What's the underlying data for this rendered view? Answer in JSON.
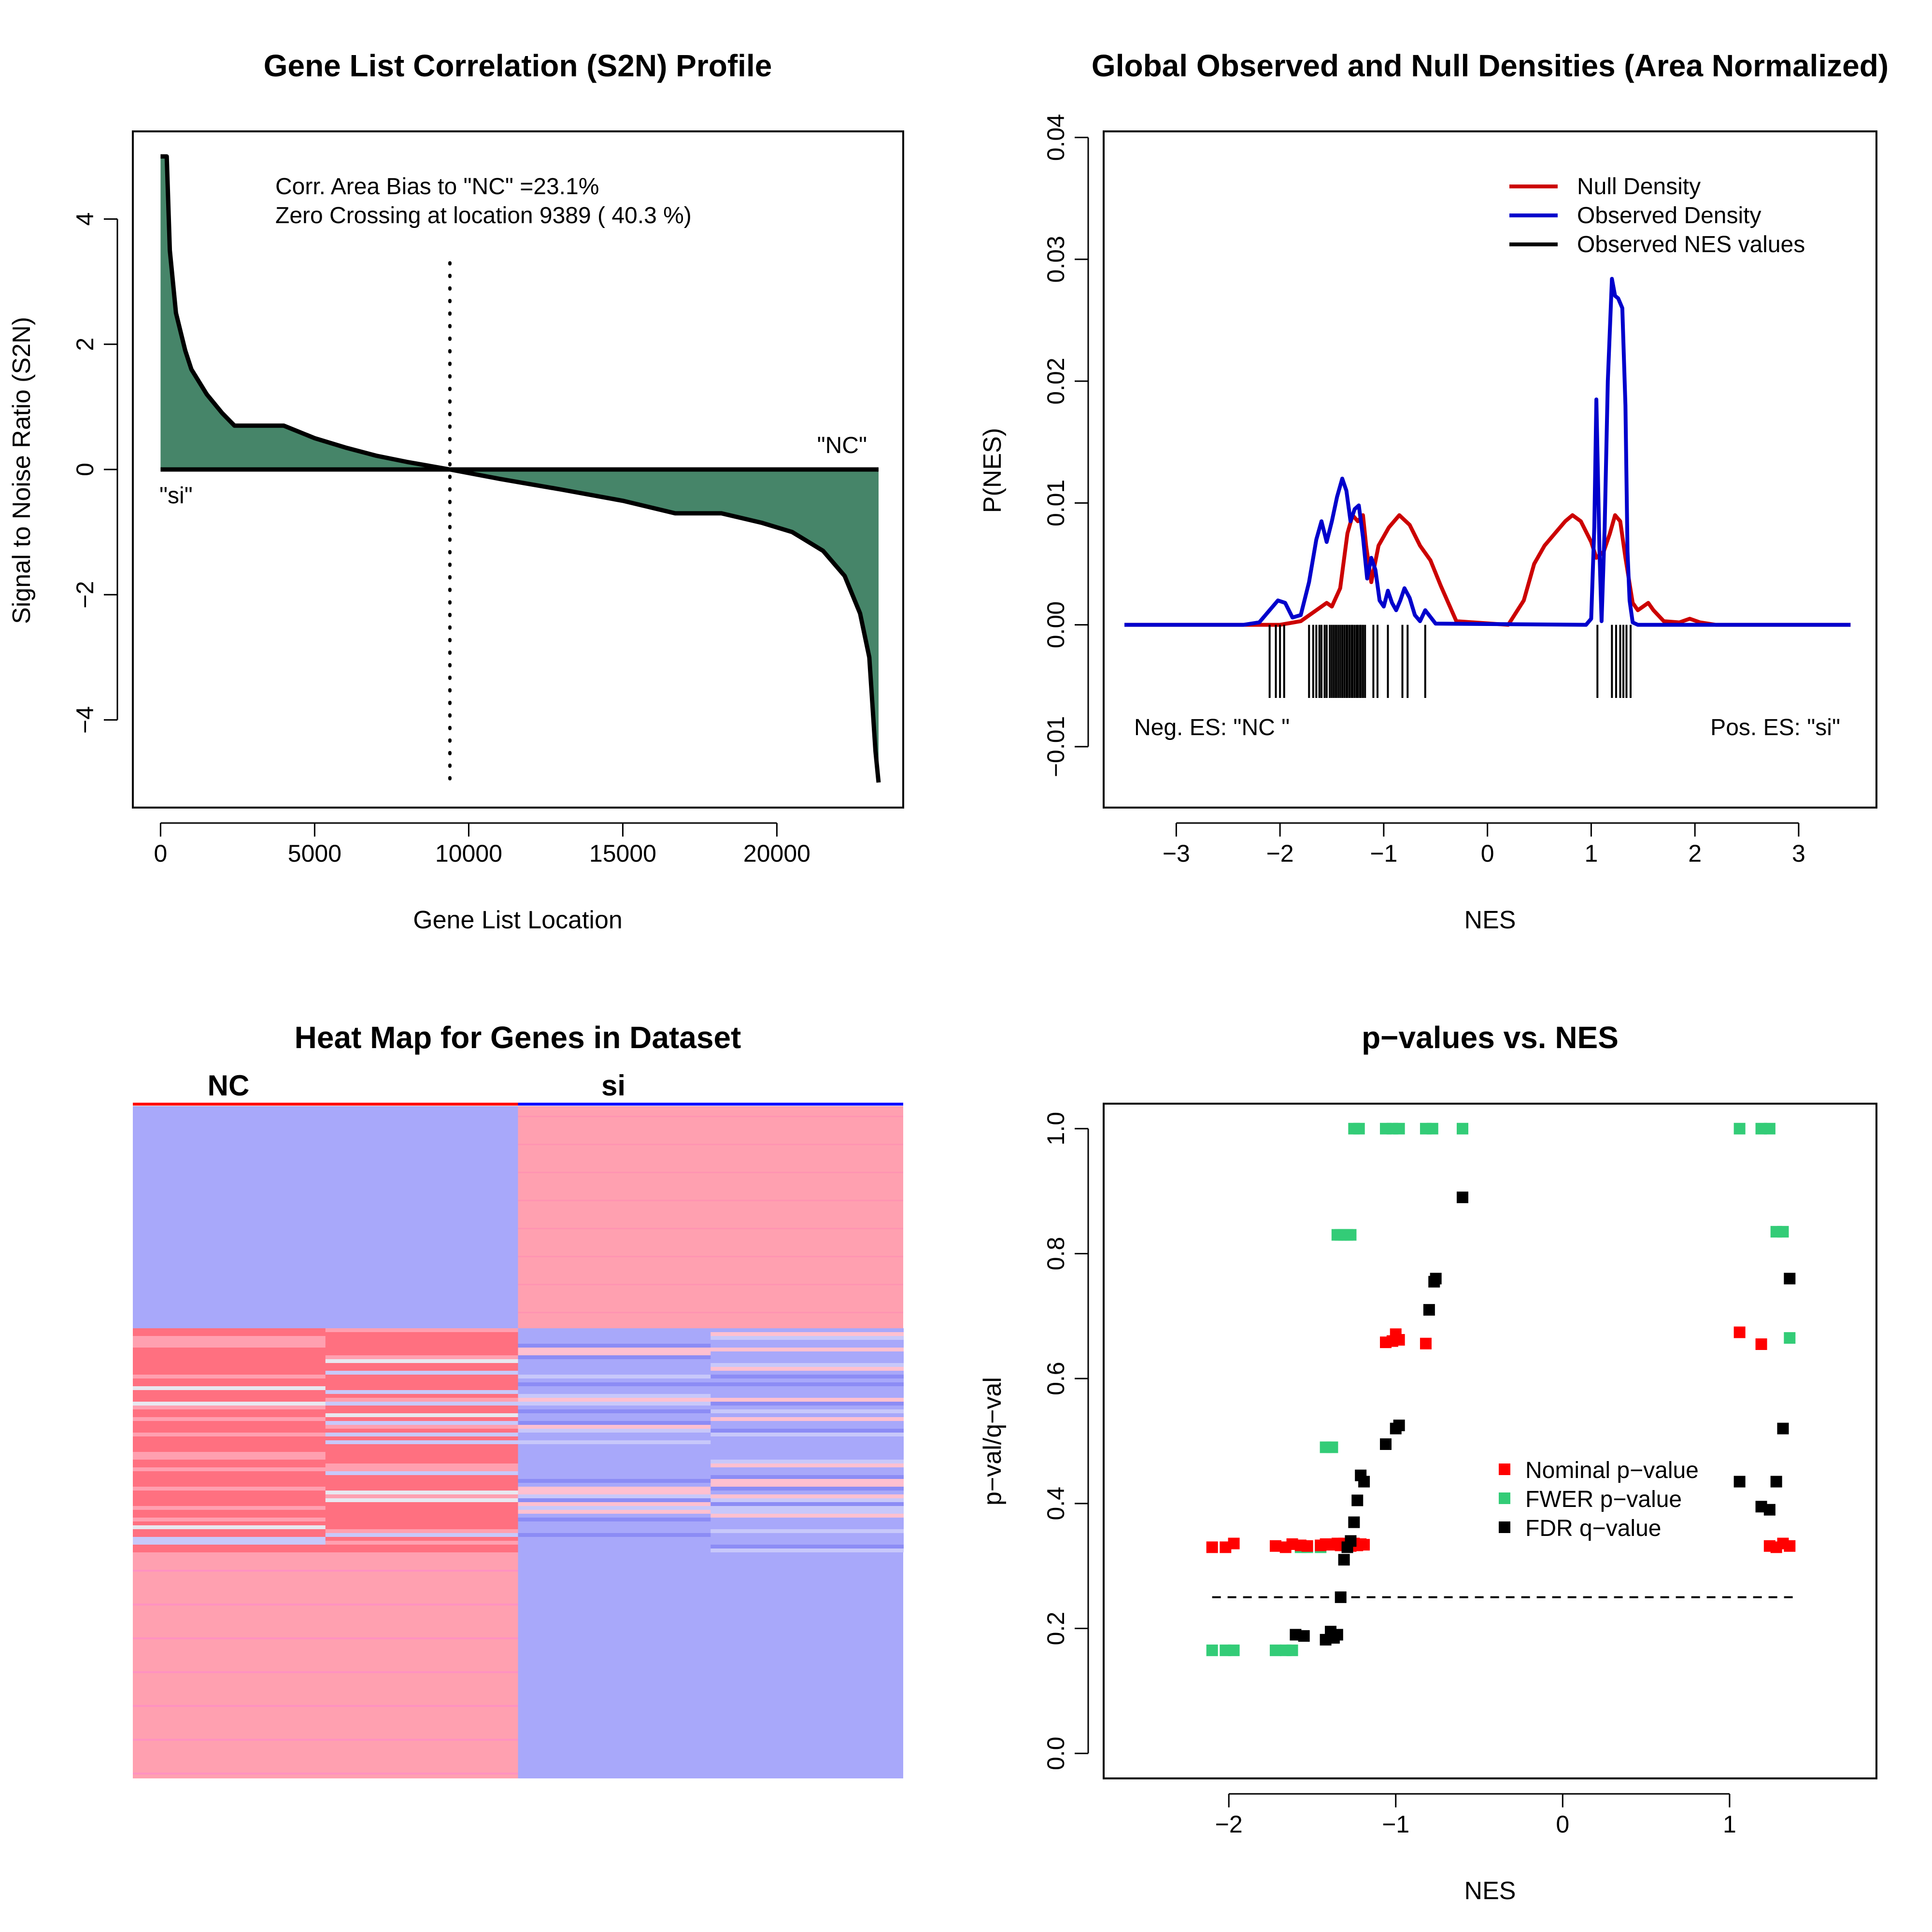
{
  "colors": {
    "fill_green": "#468569",
    "null_red": "#CC0000",
    "obs_blue": "#0000CC",
    "nominal_red": "#FF0000",
    "fwer_green": "#33CC77",
    "fdr_black": "#000000",
    "heat_blue": "#A8A8FA",
    "heat_pink": "#FFA0B0",
    "heat_red": "#FF7080",
    "heat_magenta": "#FF88CC",
    "heat_white": "#E8E8F0"
  },
  "chart_data": [
    {
      "id": "s2n",
      "type": "area",
      "title": "Gene List Correlation (S2N) Profile",
      "xlabel": "Gene List Location",
      "ylabel": "Signal to Noise Ratio (S2N)",
      "xlim": [
        -900,
        24100
      ],
      "ylim": [
        -5.4,
        5.4
      ],
      "xticks": [
        0,
        5000,
        10000,
        15000,
        20000
      ],
      "xtick_labels": [
        "0",
        "5000",
        "10000",
        "15000",
        "20000"
      ],
      "yticks": [
        -4,
        -2,
        0,
        2,
        4
      ],
      "ytick_labels": [
        "−4",
        "−2",
        "0",
        "2",
        "4"
      ],
      "annotations": [
        "Corr. Area Bias to \"NC\" =23.1%",
        "Zero Crossing at location  9389  ( 40.3  %)"
      ],
      "label_top": "\"NC\"",
      "label_bottom": "\"si\"",
      "zero_crossing": 9389,
      "x": [
        0,
        50,
        200,
        300,
        500,
        800,
        1000,
        1500,
        2000,
        2400,
        4000,
        5000,
        6000,
        7000,
        8000,
        9389,
        11000,
        13000,
        15000,
        16700,
        18200,
        19500,
        20500,
        21500,
        22200,
        22700,
        23000,
        23200,
        23300
      ],
      "values": [
        5.0,
        5.0,
        5.0,
        3.5,
        2.5,
        1.9,
        1.6,
        1.2,
        0.9,
        0.7,
        0.7,
        0.5,
        0.35,
        0.22,
        0.12,
        0.0,
        -0.15,
        -0.32,
        -0.5,
        -0.7,
        -0.7,
        -0.85,
        -1.0,
        -1.3,
        -1.7,
        -2.3,
        -3.0,
        -4.5,
        -5.0
      ]
    },
    {
      "id": "densities",
      "type": "line",
      "title": "Global Observed and Null Densities (Area Normalized)",
      "xlabel": "NES",
      "ylabel": "P(NES)",
      "xlim": [
        -3.7,
        3.75
      ],
      "ylim": [
        -0.015,
        0.0405
      ],
      "xticks": [
        -3,
        -2,
        -1,
        0,
        1,
        2,
        3
      ],
      "xtick_labels": [
        "−3",
        "−2",
        "−1",
        "0",
        "1",
        "2",
        "3"
      ],
      "yticks": [
        -0.01,
        0.0,
        0.01,
        0.02,
        0.03,
        0.04
      ],
      "ytick_labels": [
        "−0.01",
        "0.00",
        "0.01",
        "0.02",
        "0.03",
        "0.04"
      ],
      "legend": [
        "Null Density",
        "Observed Density",
        "Observed NES values"
      ],
      "legend_position": "top-right",
      "text_left": "Neg. ES: \"NC \"",
      "text_right": "Pos. ES: \"si\"",
      "series": [
        {
          "name": "Null Density",
          "x": [
            -3.5,
            -2.4,
            -2.0,
            -1.8,
            -1.65,
            -1.55,
            -1.5,
            -1.42,
            -1.35,
            -1.3,
            -1.25,
            -1.2,
            -1.17,
            -1.12,
            -1.05,
            -0.95,
            -0.85,
            -0.75,
            -0.65,
            -0.55,
            -0.45,
            -0.3,
            0.2,
            0.35,
            0.45,
            0.55,
            0.65,
            0.75,
            0.82,
            0.9,
            1.0,
            1.05,
            1.12,
            1.18,
            1.23,
            1.28,
            1.33,
            1.4,
            1.45,
            1.5,
            1.55,
            1.6,
            1.7,
            1.85,
            1.95,
            2.05,
            2.2,
            3.5
          ],
          "values": [
            0,
            0,
            0,
            0.0003,
            0.0012,
            0.0018,
            0.0015,
            0.003,
            0.0075,
            0.009,
            0.0085,
            0.009,
            0.0065,
            0.0035,
            0.0065,
            0.008,
            0.009,
            0.0082,
            0.0065,
            0.0053,
            0.0032,
            0.0003,
            0,
            0.002,
            0.005,
            0.0065,
            0.0075,
            0.0085,
            0.009,
            0.0085,
            0.0068,
            0.0055,
            0.006,
            0.0075,
            0.009,
            0.0085,
            0.0055,
            0.0018,
            0.0012,
            0.0015,
            0.0018,
            0.0012,
            0.0003,
            0.0002,
            0.0005,
            0.0002,
            0,
            0
          ]
        },
        {
          "name": "Observed Density",
          "x": [
            -3.5,
            -2.35,
            -2.2,
            -2.1,
            -2.02,
            -1.95,
            -1.88,
            -1.8,
            -1.72,
            -1.65,
            -1.6,
            -1.55,
            -1.5,
            -1.45,
            -1.4,
            -1.36,
            -1.32,
            -1.28,
            -1.24,
            -1.2,
            -1.16,
            -1.12,
            -1.08,
            -1.04,
            -1.0,
            -0.96,
            -0.92,
            -0.88,
            -0.84,
            -0.8,
            -0.75,
            -0.7,
            -0.65,
            -0.6,
            -0.5,
            0.95,
            1.0,
            1.03,
            1.05,
            1.08,
            1.1,
            1.13,
            1.16,
            1.2,
            1.23,
            1.26,
            1.3,
            1.33,
            1.35,
            1.37,
            1.4,
            1.45,
            3.5
          ],
          "values": [
            0,
            0,
            0.0002,
            0.0012,
            0.002,
            0.0018,
            0.0006,
            0.0008,
            0.0035,
            0.007,
            0.0085,
            0.0068,
            0.0085,
            0.0105,
            0.012,
            0.011,
            0.0085,
            0.0095,
            0.0098,
            0.0072,
            0.0038,
            0.0055,
            0.0045,
            0.002,
            0.0015,
            0.0028,
            0.0018,
            0.0012,
            0.002,
            0.003,
            0.0022,
            0.0008,
            0.0003,
            0.0012,
            0.0001,
            0,
            0.0005,
            0.008,
            0.0185,
            0.006,
            0.0003,
            0.008,
            0.02,
            0.0284,
            0.027,
            0.0268,
            0.026,
            0.018,
            0.006,
            0.002,
            0.0002,
            0,
            0
          ]
        }
      ],
      "observed_nes": [
        -2.1,
        -2.04,
        -2.0,
        -1.96,
        -1.72,
        -1.68,
        -1.65,
        -1.62,
        -1.6,
        -1.57,
        -1.55,
        -1.52,
        -1.5,
        -1.48,
        -1.46,
        -1.44,
        -1.42,
        -1.4,
        -1.38,
        -1.36,
        -1.35,
        -1.33,
        -1.31,
        -1.3,
        -1.28,
        -1.26,
        -1.25,
        -1.23,
        -1.22,
        -1.2,
        -1.18,
        -1.1,
        -1.06,
        -0.96,
        -0.82,
        -0.77,
        -0.6,
        1.06,
        1.2,
        1.24,
        1.28,
        1.31,
        1.34,
        1.38
      ],
      "nes_tick_range": [
        -0.006,
        0.0
      ]
    },
    {
      "id": "heatmap",
      "type": "heatmap",
      "title": "Heat Map for Genes in Dataset",
      "groups": [
        "NC",
        "si"
      ]
    },
    {
      "id": "pvalues",
      "type": "scatter",
      "title": "p−values vs. NES",
      "xlabel": "NES",
      "ylabel": "p−val/q−val",
      "xlim": [
        -2.75,
        1.88
      ],
      "ylim": [
        -0.04,
        1.04
      ],
      "xticks": [
        -2,
        -1,
        0,
        1
      ],
      "xtick_labels": [
        "−2",
        "−1",
        "0",
        "1"
      ],
      "yticks": [
        0.0,
        0.2,
        0.4,
        0.6,
        0.8,
        1.0
      ],
      "ytick_labels": [
        "0.0",
        "0.2",
        "0.4",
        "0.6",
        "0.8",
        "1.0"
      ],
      "threshold": 0.25,
      "threshold_range": [
        -2.1,
        1.38
      ],
      "legend": [
        "Nominal p−value",
        "FWER p−value",
        "FDR q−value"
      ],
      "legend_position": "center-right",
      "series": [
        {
          "name": "Nominal p−value",
          "x": [
            -2.1,
            -2.02,
            -1.97,
            -1.72,
            -1.66,
            -1.62,
            -1.57,
            -1.53,
            -1.45,
            -1.42,
            -1.38,
            -1.35,
            -1.33,
            -1.31,
            -1.29,
            -1.27,
            -1.25,
            -1.23,
            -1.21,
            -1.19,
            -1.06,
            -1.02,
            -1.0,
            -0.98,
            -0.82,
            1.06,
            1.19,
            1.24,
            1.28,
            1.32,
            1.36
          ],
          "values": [
            0.33,
            0.33,
            0.336,
            0.332,
            0.33,
            0.335,
            0.333,
            0.332,
            0.333,
            0.335,
            0.334,
            0.336,
            0.333,
            0.336,
            0.334,
            0.332,
            0.336,
            0.333,
            0.335,
            0.334,
            0.658,
            0.66,
            0.671,
            0.662,
            0.656,
            0.674,
            0.655,
            0.332,
            0.33,
            0.336,
            0.332
          ]
        },
        {
          "name": "FWER p−value",
          "x": [
            -2.1,
            -2.02,
            -1.97,
            -1.72,
            -1.66,
            -1.62,
            -1.57,
            -1.53,
            -1.45,
            -1.42,
            -1.38,
            -1.35,
            -1.33,
            -1.31,
            -1.29,
            -1.27,
            -1.25,
            -1.22,
            -1.06,
            -1.02,
            -0.98,
            -0.82,
            -0.78,
            -0.6,
            1.06,
            1.19,
            1.24,
            1.28,
            1.32,
            1.36
          ],
          "values": [
            0.165,
            0.165,
            0.165,
            0.165,
            0.165,
            0.165,
            0.33,
            0.33,
            0.33,
            0.49,
            0.49,
            0.83,
            0.83,
            0.83,
            0.83,
            0.83,
            1.0,
            1.0,
            1.0,
            1.0,
            1.0,
            1.0,
            1.0,
            1.0,
            1.0,
            1.0,
            1.0,
            0.835,
            0.835,
            0.665
          ]
        },
        {
          "name": "FDR q−value",
          "x": [
            -1.6,
            -1.55,
            -1.42,
            -1.39,
            -1.37,
            -1.35,
            -1.33,
            -1.31,
            -1.29,
            -1.27,
            -1.25,
            -1.23,
            -1.21,
            -1.19,
            -1.06,
            -1.0,
            -0.98,
            -0.8,
            -0.77,
            -0.76,
            -0.6,
            1.06,
            1.19,
            1.24,
            1.28,
            1.32,
            1.36
          ],
          "values": [
            0.19,
            0.188,
            0.182,
            0.195,
            0.185,
            0.19,
            0.25,
            0.31,
            0.33,
            0.34,
            0.37,
            0.405,
            0.445,
            0.435,
            0.495,
            0.52,
            0.525,
            0.71,
            0.755,
            0.76,
            0.89,
            0.435,
            0.395,
            0.39,
            0.435,
            0.52,
            0.76
          ]
        }
      ]
    }
  ]
}
